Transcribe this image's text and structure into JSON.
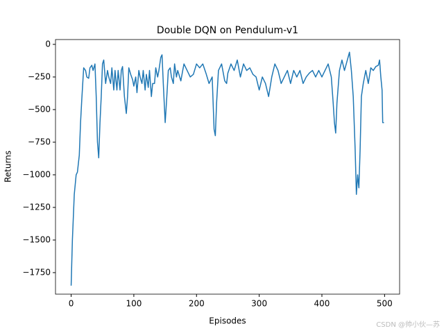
{
  "chart_data": {
    "type": "line",
    "title": "Double DQN on Pendulum-v1",
    "xlabel": "Episodes",
    "ylabel": "Returns",
    "watermark": "CSDN @帅小伙—苏",
    "xlim": [
      -24.95,
      523.95
    ],
    "xticks": [
      0,
      100,
      200,
      300,
      400,
      500
    ],
    "ylim": [
      -1915,
      37
    ],
    "yticks": [
      0,
      {
        "value": -250,
        "label": "−250"
      },
      {
        "value": -500,
        "label": "−500"
      },
      {
        "value": -750,
        "label": "−750"
      },
      {
        "value": -1000,
        "label": "−1000"
      },
      {
        "value": -1250,
        "label": "−1250"
      },
      {
        "value": -1500,
        "label": "−1500"
      },
      {
        "value": -1750,
        "label": "−1750"
      }
    ],
    "series": [
      {
        "name": "Returns",
        "color": "#1f77b4",
        "x": [
          0,
          2,
          5,
          8,
          10,
          13,
          15,
          17,
          20,
          23,
          25,
          28,
          30,
          33,
          35,
          38,
          40,
          42,
          44,
          46,
          48,
          50,
          52,
          55,
          58,
          60,
          63,
          65,
          68,
          70,
          73,
          75,
          78,
          80,
          82,
          85,
          88,
          90,
          92,
          95,
          98,
          100,
          103,
          105,
          108,
          110,
          113,
          115,
          118,
          120,
          123,
          125,
          128,
          130,
          133,
          135,
          138,
          140,
          143,
          145,
          147,
          150,
          152,
          155,
          158,
          160,
          163,
          165,
          168,
          170,
          175,
          178,
          180,
          185,
          190,
          195,
          200,
          205,
          210,
          215,
          220,
          225,
          228,
          230,
          232,
          235,
          240,
          245,
          248,
          250,
          255,
          260,
          265,
          270,
          275,
          280,
          285,
          290,
          295,
          300,
          305,
          310,
          315,
          320,
          325,
          330,
          335,
          340,
          345,
          350,
          355,
          360,
          365,
          370,
          375,
          380,
          385,
          390,
          395,
          400,
          405,
          410,
          415,
          418,
          420,
          422,
          424,
          428,
          432,
          436,
          440,
          444,
          447,
          450,
          453,
          455,
          457,
          459,
          461,
          463,
          466,
          470,
          474,
          478,
          482,
          486,
          490,
          492,
          494,
          496,
          497,
          499
        ],
        "values": [
          -1850,
          -1500,
          -1150,
          -1000,
          -980,
          -850,
          -600,
          -420,
          -180,
          -200,
          -250,
          -260,
          -180,
          -160,
          -200,
          -150,
          -400,
          -750,
          -870,
          -600,
          -400,
          -150,
          -120,
          -300,
          -200,
          -250,
          -300,
          -180,
          -350,
          -200,
          -350,
          -200,
          -350,
          -200,
          -170,
          -400,
          -530,
          -400,
          -180,
          -230,
          -270,
          -320,
          -250,
          -370,
          -200,
          -250,
          -300,
          -200,
          -350,
          -230,
          -330,
          -200,
          -400,
          -300,
          -300,
          -180,
          -250,
          -200,
          -100,
          -80,
          -300,
          -600,
          -450,
          -200,
          -180,
          -250,
          -300,
          -150,
          -250,
          -200,
          -280,
          -200,
          -150,
          -200,
          -250,
          -230,
          -150,
          -180,
          -150,
          -220,
          -300,
          -250,
          -650,
          -700,
          -450,
          -200,
          -150,
          -280,
          -300,
          -220,
          -150,
          -200,
          -120,
          -250,
          -150,
          -200,
          -180,
          -230,
          -250,
          -350,
          -250,
          -300,
          -400,
          -250,
          -150,
          -200,
          -300,
          -250,
          -200,
          -300,
          -200,
          -250,
          -200,
          -300,
          -250,
          -220,
          -200,
          -250,
          -200,
          -250,
          -200,
          -150,
          -250,
          -450,
          -600,
          -680,
          -450,
          -200,
          -120,
          -200,
          -130,
          -60,
          -200,
          -400,
          -800,
          -1150,
          -1000,
          -1100,
          -800,
          -400,
          -300,
          -200,
          -300,
          -180,
          -200,
          -170,
          -160,
          -120,
          -250,
          -350,
          -600,
          -600
        ]
      }
    ]
  }
}
